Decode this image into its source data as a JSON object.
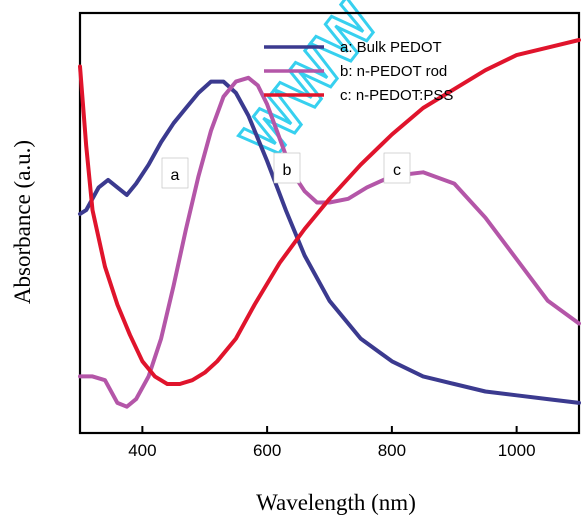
{
  "chart_data": {
    "type": "line",
    "title": "",
    "xlabel": "Wavelength (nm)",
    "ylabel": "Absorbance (a.u.)",
    "xlim": [
      300,
      1100
    ],
    "ylim": [
      0,
      1
    ],
    "xticks": [
      400,
      600,
      800,
      1000
    ],
    "yticks": [],
    "grid": false,
    "legend_position": "top-right",
    "series": [
      {
        "name": "a: Bulk PEDOT",
        "label": "a",
        "color": "#3b3a8f",
        "x": [
          300,
          310,
          330,
          345,
          360,
          375,
          390,
          410,
          430,
          450,
          470,
          490,
          510,
          530,
          550,
          570,
          600,
          630,
          660,
          700,
          750,
          800,
          850,
          900,
          950,
          1000,
          1050,
          1100
        ],
        "y": [
          0.54,
          0.55,
          0.61,
          0.63,
          0.61,
          0.59,
          0.62,
          0.67,
          0.73,
          0.78,
          0.82,
          0.86,
          0.89,
          0.89,
          0.86,
          0.8,
          0.68,
          0.55,
          0.43,
          0.31,
          0.21,
          0.15,
          0.11,
          0.09,
          0.07,
          0.06,
          0.05,
          0.04
        ]
      },
      {
        "name": "b: n-PEDOT rod",
        "label": "b",
        "color": "#b456a8",
        "x": [
          300,
          320,
          340,
          360,
          375,
          390,
          410,
          430,
          450,
          470,
          490,
          510,
          530,
          550,
          570,
          585,
          600,
          620,
          640,
          660,
          680,
          700,
          730,
          760,
          800,
          850,
          900,
          950,
          1000,
          1050,
          1100
        ],
        "y": [
          0.11,
          0.11,
          0.1,
          0.04,
          0.03,
          0.05,
          0.11,
          0.21,
          0.35,
          0.5,
          0.64,
          0.76,
          0.85,
          0.89,
          0.9,
          0.88,
          0.83,
          0.74,
          0.65,
          0.6,
          0.57,
          0.57,
          0.58,
          0.61,
          0.64,
          0.65,
          0.62,
          0.53,
          0.42,
          0.31,
          0.25
        ]
      },
      {
        "name": "c: n-PEDOT:PSS",
        "label": "c",
        "color": "#e0142c",
        "x": [
          300,
          310,
          320,
          340,
          360,
          380,
          400,
          420,
          440,
          460,
          480,
          500,
          520,
          550,
          580,
          620,
          660,
          700,
          750,
          800,
          850,
          900,
          950,
          1000,
          1050,
          1100
        ],
        "y": [
          0.93,
          0.72,
          0.55,
          0.4,
          0.3,
          0.22,
          0.15,
          0.11,
          0.09,
          0.09,
          0.1,
          0.12,
          0.15,
          0.21,
          0.3,
          0.41,
          0.5,
          0.58,
          0.67,
          0.75,
          0.82,
          0.87,
          0.92,
          0.96,
          0.98,
          1.0
        ]
      }
    ]
  },
  "watermark": {
    "text": "WWW",
    "color": "#22ccee"
  }
}
